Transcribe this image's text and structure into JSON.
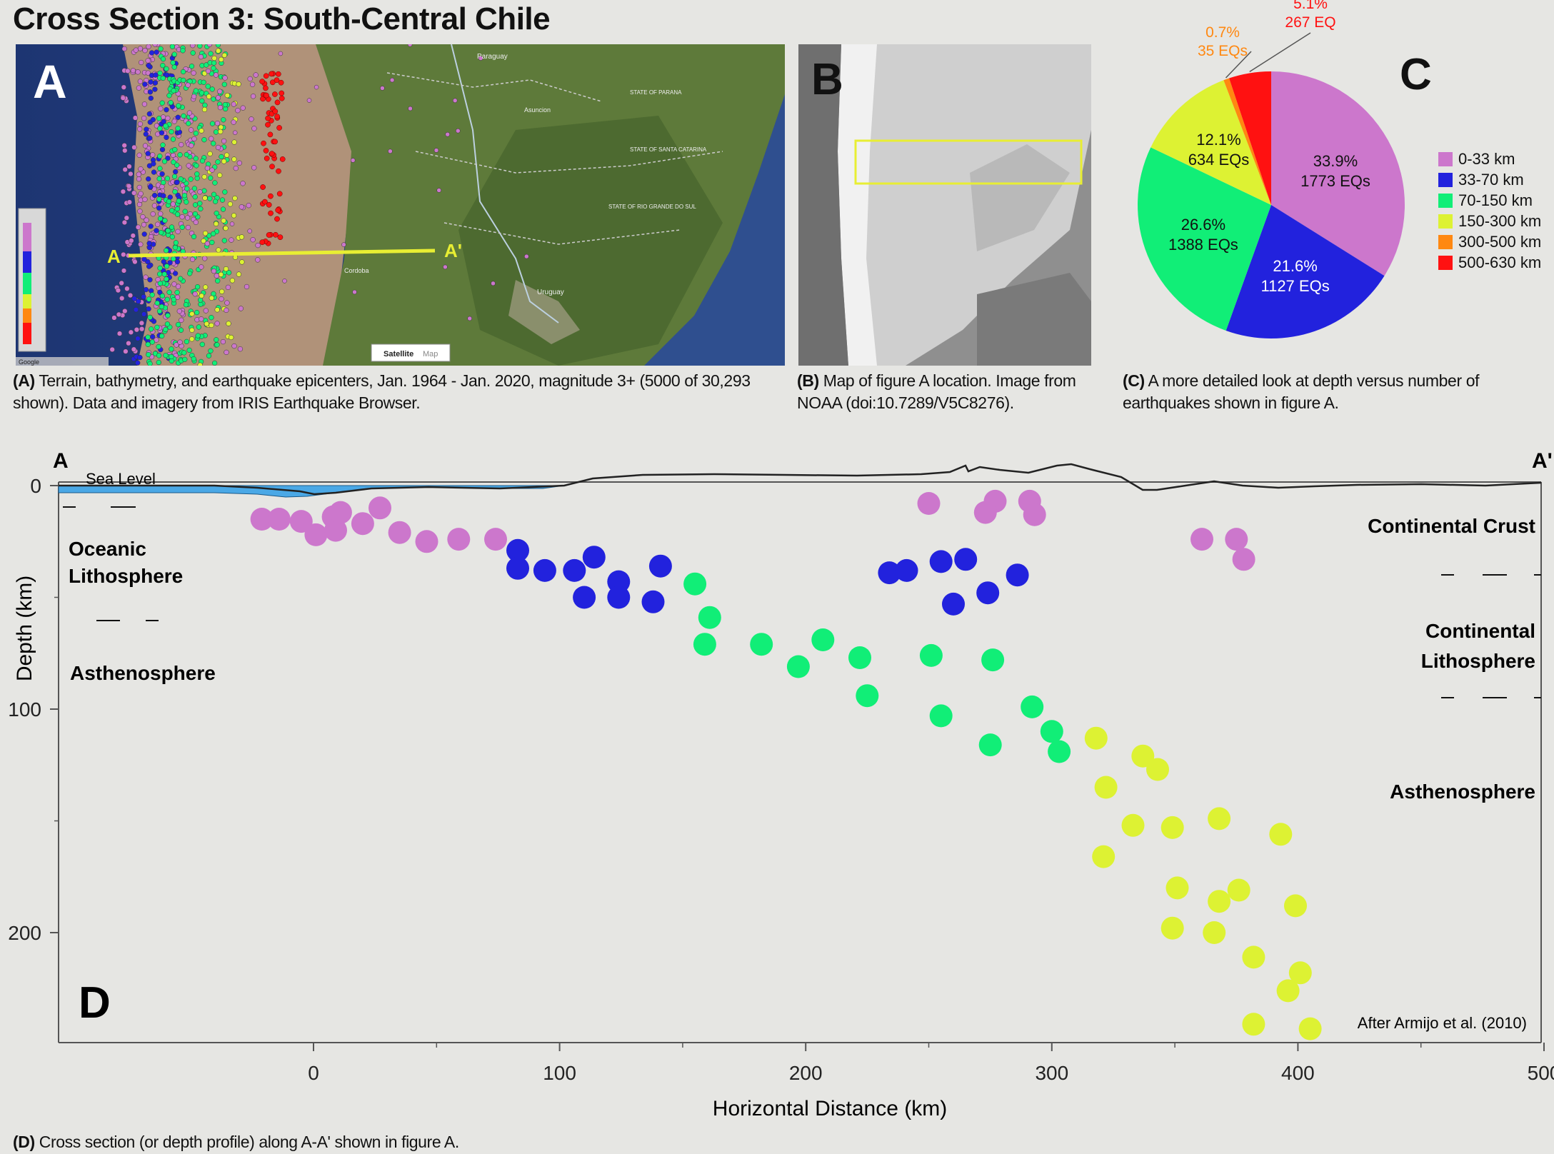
{
  "title": "Cross Section 3: South-Central Chile",
  "panelA": {
    "letter": "A",
    "line_start": "A",
    "line_end": "A'",
    "map_labels": [
      "Paraguay",
      "Asuncion",
      "STATE OF PARANA",
      "STATE OF SANTA CATARINA",
      "STATE OF RIO GRANDE DO SUL",
      "Uruguay",
      "Cordoba"
    ],
    "toggle": [
      "Satellite",
      "Map"
    ],
    "credit": "Google",
    "caption_bold": "(A)",
    "caption": "Terrain, bathymetry, and earthquake epicenters, Jan. 1964 - Jan. 2020, magnitude 3+ (5000 of 30,293 shown). Data and imagery from IRIS Earthquake Browser."
  },
  "panelB": {
    "letter": "B",
    "caption_bold": "(B)",
    "caption": "Map of figure A location. Image from NOAA (doi:10.7289/V5C8276)."
  },
  "panelC": {
    "letter": "C",
    "caption_bold": "(C)",
    "caption": "A more detailed look at depth versus number of earthquakes shown in figure A."
  },
  "panelD": {
    "letter": "D",
    "caption_bold": "(D)",
    "caption": "Cross section (or depth profile) along A-A' shown in figure A.",
    "credit": "After Armijo et al. (2010)",
    "sea_level_label": "Sea Level",
    "left_endpoint": "A",
    "right_endpoint": "A'",
    "zone_labels": {
      "oceanic_1": "Oceanic",
      "oceanic_2": "Lithosphere",
      "asthenosphere_left": "Asthenosphere",
      "continental_crust": "Continental Crust",
      "continental_lith_1": "Continental",
      "continental_lith_2": "Lithosphere",
      "asthenosphere_right": "Asthenosphere"
    }
  },
  "colors": {
    "0-33": "#cc77cc",
    "33-70": "#2222dd",
    "70-150": "#11ee77",
    "150-300": "#ddf233",
    "300-500": "#ff8811",
    "500-630": "#ff1111",
    "sea": "#4aa8e6"
  },
  "chart_data": [
    {
      "type": "pie",
      "slices": [
        {
          "label": "0-33 km",
          "percent": 33.9,
          "count_label": "1773 EQs",
          "color": "#cc77cc"
        },
        {
          "label": "33-70 km",
          "percent": 21.6,
          "count_label": "1127 EQs",
          "color": "#2222dd"
        },
        {
          "label": "70-150 km",
          "percent": 26.6,
          "count_label": "1388 EQs",
          "color": "#11ee77"
        },
        {
          "label": "150-300 km",
          "percent": 12.1,
          "count_label": "634 EQs",
          "color": "#ddf233"
        },
        {
          "label": "300-500 km",
          "percent": 0.7,
          "count_label": "35 EQs",
          "color": "#ff8811"
        },
        {
          "label": "500-630 km",
          "percent": 5.1,
          "count_label": "267 EQ",
          "color": "#ff1111"
        }
      ],
      "legend_position": "right"
    },
    {
      "type": "scatter",
      "xlabel": "Horizontal Distance (km)",
      "ylabel": "Depth (km)",
      "xlim": [
        -105,
        500
      ],
      "ylim": [
        0,
        250
      ],
      "y_inverted": true,
      "xticks": [
        0,
        100,
        200,
        300,
        400,
        500
      ],
      "yticks": [
        0,
        100,
        200
      ],
      "series": [
        {
          "category": "0-33",
          "color": "#cc77cc",
          "points": [
            [
              -21,
              15
            ],
            [
              -14,
              15
            ],
            [
              -5,
              16
            ],
            [
              1,
              22
            ],
            [
              8,
              14
            ],
            [
              9,
              20
            ],
            [
              11,
              12
            ],
            [
              20,
              17
            ],
            [
              27,
              10
            ],
            [
              35,
              21
            ],
            [
              46,
              25
            ],
            [
              59,
              24
            ],
            [
              74,
              24
            ],
            [
              250,
              8
            ],
            [
              277,
              7
            ],
            [
              273,
              12
            ],
            [
              291,
              7
            ],
            [
              293,
              13
            ],
            [
              361,
              24
            ],
            [
              375,
              24
            ],
            [
              378,
              33
            ]
          ]
        },
        {
          "category": "33-70",
          "color": "#2222dd",
          "points": [
            [
              83,
              29
            ],
            [
              83,
              37
            ],
            [
              94,
              38
            ],
            [
              106,
              38
            ],
            [
              114,
              32
            ],
            [
              110,
              50
            ],
            [
              124,
              43
            ],
            [
              124,
              50
            ],
            [
              138,
              52
            ],
            [
              141,
              36
            ],
            [
              234,
              39
            ],
            [
              241,
              38
            ],
            [
              255,
              34
            ],
            [
              265,
              33
            ],
            [
              260,
              53
            ],
            [
              274,
              48
            ],
            [
              286,
              40
            ]
          ]
        },
        {
          "category": "70-150",
          "color": "#11ee77",
          "points": [
            [
              155,
              44
            ],
            [
              161,
              59
            ],
            [
              159,
              71
            ],
            [
              182,
              71
            ],
            [
              197,
              81
            ],
            [
              207,
              69
            ],
            [
              222,
              77
            ],
            [
              225,
              94
            ],
            [
              251,
              76
            ],
            [
              255,
              103
            ],
            [
              276,
              78
            ],
            [
              275,
              116
            ],
            [
              292,
              99
            ],
            [
              300,
              110
            ],
            [
              303,
              119
            ]
          ]
        },
        {
          "category": "150-300",
          "color": "#ddf233",
          "points": [
            [
              318,
              113
            ],
            [
              322,
              135
            ],
            [
              321,
              166
            ],
            [
              333,
              152
            ],
            [
              337,
              121
            ],
            [
              343,
              127
            ],
            [
              349,
              153
            ],
            [
              351,
              180
            ],
            [
              349,
              198
            ],
            [
              368,
              149
            ],
            [
              366,
              200
            ],
            [
              368,
              186
            ],
            [
              376,
              181
            ],
            [
              382,
              211
            ],
            [
              382,
              241
            ],
            [
              393,
              156
            ],
            [
              396,
              226
            ],
            [
              399,
              188
            ],
            [
              401,
              218
            ],
            [
              405,
              243
            ]
          ]
        }
      ]
    }
  ]
}
